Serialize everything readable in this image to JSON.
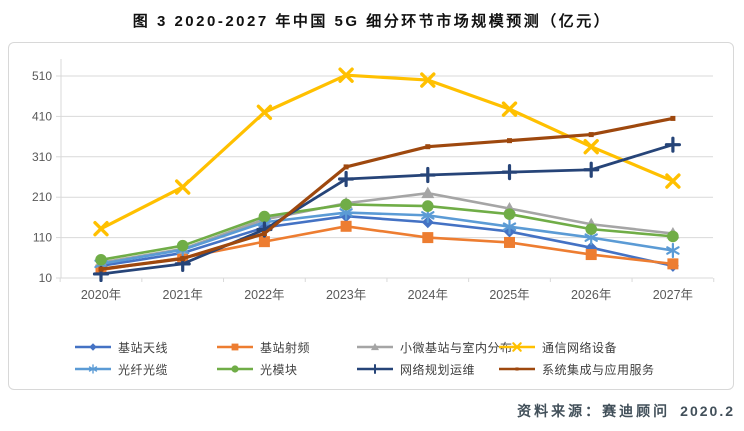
{
  "title": "图 3 2020-2027 年中国 5G 细分环节市场规模预测（亿元）",
  "source": {
    "prefix": "资料来源：",
    "org": "赛迪顾问",
    "date": "2020.2"
  },
  "chart_data": {
    "type": "line",
    "title": "图 3 2020-2027 年中国 5G 细分环节市场规模预测（亿元）",
    "unit": "亿元",
    "categories": [
      "2020年",
      "2021年",
      "2022年",
      "2023年",
      "2024年",
      "2025年",
      "2026年",
      "2027年"
    ],
    "yticks": [
      10,
      110,
      210,
      310,
      410,
      510
    ],
    "ylim": [
      10,
      560
    ],
    "grid": true,
    "legend_position": "bottom",
    "axis_color": "#d9d9d9",
    "tick_label_color": "#595959",
    "series": [
      {
        "name": "基站天线",
        "color": "#4472C4",
        "marker": "diamond",
        "values": [
          40,
          72,
          135,
          163,
          148,
          125,
          85,
          40
        ]
      },
      {
        "name": "基站射频",
        "color": "#ED7D31",
        "marker": "square",
        "values": [
          30,
          60,
          100,
          138,
          110,
          98,
          68,
          45
        ]
      },
      {
        "name": "小微基站与室内分布",
        "color": "#A5A5A5",
        "marker": "triangle",
        "values": [
          48,
          82,
          155,
          195,
          220,
          182,
          143,
          120
        ]
      },
      {
        "name": "通信网络设备",
        "color": "#FFC000",
        "marker": "x",
        "values": [
          132,
          235,
          420,
          512,
          500,
          428,
          335,
          250
        ]
      },
      {
        "name": "光纤光缆",
        "color": "#5B9BD5",
        "marker": "asterisk",
        "values": [
          45,
          80,
          148,
          172,
          165,
          137,
          110,
          78
        ]
      },
      {
        "name": "光模块",
        "color": "#70AD47",
        "marker": "circle",
        "values": [
          55,
          90,
          162,
          192,
          188,
          168,
          131,
          113
        ]
      },
      {
        "name": "网络规划运维",
        "color": "#264478",
        "marker": "plus",
        "values": [
          20,
          45,
          130,
          255,
          265,
          272,
          278,
          340
        ]
      },
      {
        "name": "系统集成与应用服务",
        "color": "#9E480E",
        "marker": "square-small",
        "values": [
          32,
          58,
          120,
          285,
          335,
          350,
          365,
          405
        ]
      }
    ]
  }
}
